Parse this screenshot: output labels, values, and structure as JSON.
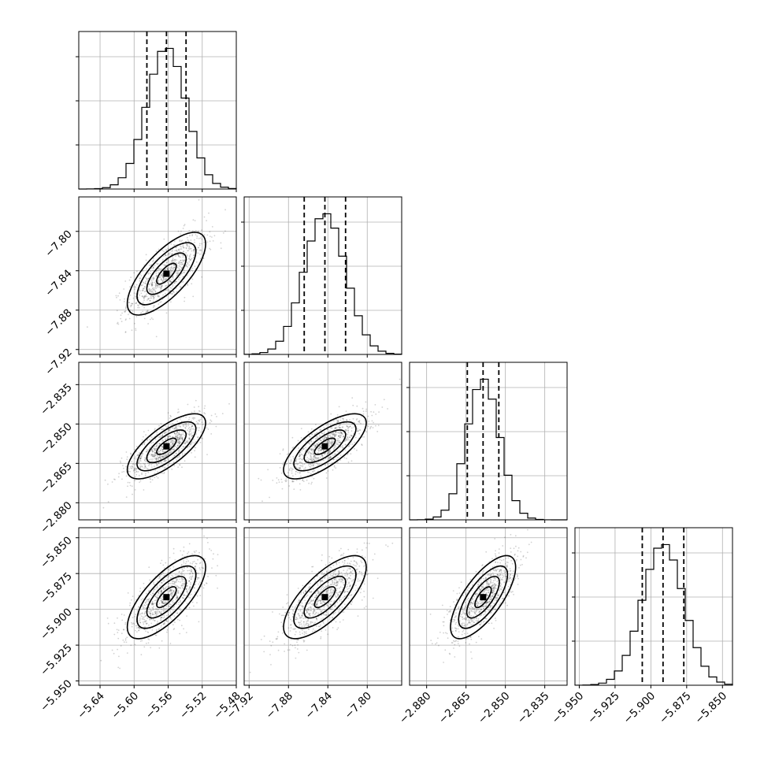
{
  "chart_data": {
    "type": "corner",
    "grid": true,
    "params": [
      {
        "mean": -5.562,
        "sd": 0.023,
        "quantiles": [
          -5.585,
          -5.562,
          -5.539
        ],
        "range": [
          -5.665,
          -5.48
        ],
        "ticks": [
          -5.64,
          -5.6,
          -5.56,
          -5.52,
          -5.48
        ],
        "tick_labels": [
          "−5.64",
          "−5.60",
          "−5.56",
          "−5.52",
          "−5.48"
        ]
      },
      {
        "mean": -7.843,
        "sd": 0.021,
        "quantiles": [
          -7.864,
          -7.843,
          -7.822
        ],
        "range": [
          -7.925,
          -7.765
        ],
        "ticks": [
          -7.92,
          -7.88,
          -7.84,
          -7.8
        ],
        "tick_labels": [
          "−7.92",
          "−7.88",
          "−7.84",
          "−7.80"
        ]
      },
      {
        "mean": -2.8585,
        "sd": 0.0062,
        "quantiles": [
          -2.8645,
          -2.8585,
          -2.8525
        ],
        "range": [
          -2.8865,
          -2.8265
        ],
        "ticks": [
          -2.88,
          -2.865,
          -2.85,
          -2.835
        ],
        "tick_labels": [
          "−2.880",
          "−2.865",
          "−2.850",
          "−2.835"
        ]
      },
      {
        "mean": -5.8915,
        "sd": 0.0145,
        "quantiles": [
          -5.906,
          -5.8915,
          -5.877
        ],
        "range": [
          -5.953,
          -5.843
        ],
        "ticks": [
          -5.95,
          -5.925,
          -5.9,
          -5.875,
          -5.85
        ],
        "tick_labels": [
          "−5.950",
          "−5.925",
          "−5.900",
          "−5.875",
          "−5.850"
        ]
      }
    ],
    "correlation": 0.72,
    "histogram": {
      "bins": 20,
      "ticks_per_panel": 3
    },
    "contour_levels": [
      0.5,
      1.0,
      1.5,
      2.0
    ]
  }
}
